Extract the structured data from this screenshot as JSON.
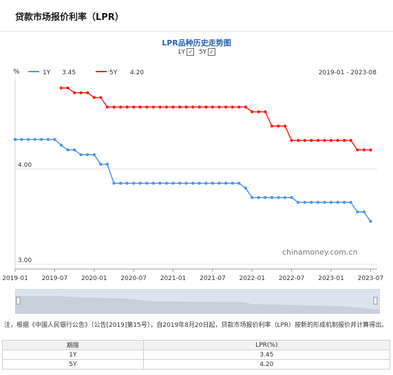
{
  "header": {
    "title": "贷款市场报价利率（LPR）"
  },
  "chart_data": {
    "type": "line",
    "title": "LPR品种历史走势图",
    "toggles": [
      {
        "label": "1Y",
        "checked": true
      },
      {
        "label": "5Y",
        "checked": true
      }
    ],
    "unit_label": "%",
    "date_range": "2019-01 - 2023-08",
    "watermark": "chinamoney.com.cn",
    "y_ticks": [
      "4.00",
      "3.00"
    ],
    "ylim": [
      2.95,
      4.95
    ],
    "x_ticks": [
      "2019-01",
      "2019-07",
      "2020-01",
      "2020-07",
      "2021-01",
      "2021-07",
      "2022-01",
      "2022-07",
      "2023-01",
      "2023-07"
    ],
    "x_tick_months": [
      0,
      6,
      12,
      18,
      24,
      30,
      36,
      42,
      48,
      54
    ],
    "xlim_months": [
      0,
      55
    ],
    "series": [
      {
        "name": "1Y",
        "latest": "3.45",
        "color": "#4f93e6",
        "points": [
          [
            0,
            4.31
          ],
          [
            1,
            4.31
          ],
          [
            2,
            4.31
          ],
          [
            3,
            4.31
          ],
          [
            4,
            4.31
          ],
          [
            5,
            4.31
          ],
          [
            6,
            4.31
          ],
          [
            7,
            4.25
          ],
          [
            8,
            4.2
          ],
          [
            9,
            4.2
          ],
          [
            10,
            4.15
          ],
          [
            11,
            4.15
          ],
          [
            12,
            4.15
          ],
          [
            13,
            4.05
          ],
          [
            14,
            4.05
          ],
          [
            15,
            3.85
          ],
          [
            16,
            3.85
          ],
          [
            17,
            3.85
          ],
          [
            18,
            3.85
          ],
          [
            19,
            3.85
          ],
          [
            20,
            3.85
          ],
          [
            21,
            3.85
          ],
          [
            22,
            3.85
          ],
          [
            23,
            3.85
          ],
          [
            24,
            3.85
          ],
          [
            25,
            3.85
          ],
          [
            26,
            3.85
          ],
          [
            27,
            3.85
          ],
          [
            28,
            3.85
          ],
          [
            29,
            3.85
          ],
          [
            30,
            3.85
          ],
          [
            31,
            3.85
          ],
          [
            32,
            3.85
          ],
          [
            33,
            3.85
          ],
          [
            34,
            3.85
          ],
          [
            35,
            3.8
          ],
          [
            36,
            3.7
          ],
          [
            37,
            3.7
          ],
          [
            38,
            3.7
          ],
          [
            39,
            3.7
          ],
          [
            40,
            3.7
          ],
          [
            41,
            3.7
          ],
          [
            42,
            3.7
          ],
          [
            43,
            3.65
          ],
          [
            44,
            3.65
          ],
          [
            45,
            3.65
          ],
          [
            46,
            3.65
          ],
          [
            47,
            3.65
          ],
          [
            48,
            3.65
          ],
          [
            49,
            3.65
          ],
          [
            50,
            3.65
          ],
          [
            51,
            3.65
          ],
          [
            52,
            3.55
          ],
          [
            53,
            3.55
          ],
          [
            54,
            3.45
          ]
        ]
      },
      {
        "name": "5Y",
        "latest": "4.20",
        "color": "#ff1a1a",
        "points": [
          [
            7,
            4.85
          ],
          [
            8,
            4.85
          ],
          [
            9,
            4.8
          ],
          [
            10,
            4.8
          ],
          [
            11,
            4.8
          ],
          [
            12,
            4.75
          ],
          [
            13,
            4.75
          ],
          [
            14,
            4.65
          ],
          [
            15,
            4.65
          ],
          [
            16,
            4.65
          ],
          [
            17,
            4.65
          ],
          [
            18,
            4.65
          ],
          [
            19,
            4.65
          ],
          [
            20,
            4.65
          ],
          [
            21,
            4.65
          ],
          [
            22,
            4.65
          ],
          [
            23,
            4.65
          ],
          [
            24,
            4.65
          ],
          [
            25,
            4.65
          ],
          [
            26,
            4.65
          ],
          [
            27,
            4.65
          ],
          [
            28,
            4.65
          ],
          [
            29,
            4.65
          ],
          [
            30,
            4.65
          ],
          [
            31,
            4.65
          ],
          [
            32,
            4.65
          ],
          [
            33,
            4.65
          ],
          [
            34,
            4.65
          ],
          [
            35,
            4.65
          ],
          [
            36,
            4.6
          ],
          [
            37,
            4.6
          ],
          [
            38,
            4.6
          ],
          [
            39,
            4.45
          ],
          [
            40,
            4.45
          ],
          [
            41,
            4.45
          ],
          [
            42,
            4.3
          ],
          [
            43,
            4.3
          ],
          [
            44,
            4.3
          ],
          [
            45,
            4.3
          ],
          [
            46,
            4.3
          ],
          [
            47,
            4.3
          ],
          [
            48,
            4.3
          ],
          [
            49,
            4.3
          ],
          [
            50,
            4.3
          ],
          [
            51,
            4.3
          ],
          [
            52,
            4.2
          ],
          [
            53,
            4.2
          ],
          [
            54,
            4.2
          ]
        ]
      }
    ]
  },
  "note": "注，根据《中国人民银行公告》（公告[2019]第15号），自2019年8月20日起，贷款市场报价利率（LPR）按新的形成机制报价并计算得出。",
  "table": {
    "headers": [
      "期限",
      "LPR(%)"
    ],
    "rows": [
      {
        "term": "1Y",
        "value": "3.45"
      },
      {
        "term": "5Y",
        "value": "4.20"
      }
    ]
  }
}
